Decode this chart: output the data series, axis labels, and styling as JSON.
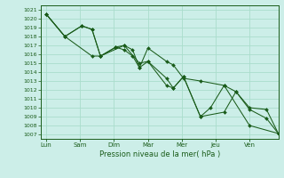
{
  "xlabel": "Pression niveau de la mer( hPa )",
  "bg_color": "#cceee8",
  "grid_color": "#aaddcc",
  "line_color": "#1a5c1a",
  "marker_color": "#1a5c1a",
  "ylim": [
    1006.5,
    1021.5
  ],
  "yticks": [
    1007,
    1008,
    1009,
    1010,
    1011,
    1012,
    1013,
    1014,
    1015,
    1016,
    1017,
    1018,
    1019,
    1020,
    1021
  ],
  "xtick_labels": [
    "Lun",
    "Sam",
    "Dim",
    "Mar",
    "Mer",
    "Jeu",
    "Ven"
  ],
  "xtick_positions": [
    0,
    1,
    2,
    3,
    4,
    5,
    6
  ],
  "xlim": [
    -0.15,
    6.85
  ],
  "series1_x": [
    0.0,
    0.55,
    1.05,
    1.35,
    1.6,
    2.05,
    2.3,
    2.55,
    2.75,
    3.0,
    3.55,
    3.75,
    4.05,
    4.55,
    5.25,
    6.0,
    6.85
  ],
  "series1_y": [
    1020.5,
    1018.0,
    1019.2,
    1018.8,
    1015.8,
    1016.8,
    1016.5,
    1015.8,
    1014.5,
    1016.7,
    1015.2,
    1014.8,
    1013.3,
    1013.0,
    1012.5,
    1008.0,
    1007.1
  ],
  "series2_x": [
    0.0,
    0.55,
    1.35,
    1.6,
    2.3,
    2.75,
    3.0,
    3.55,
    3.75,
    4.05,
    4.55,
    5.25,
    5.6,
    6.0,
    6.5,
    6.85
  ],
  "series2_y": [
    1020.5,
    1018.0,
    1015.8,
    1015.8,
    1017.0,
    1015.0,
    1015.2,
    1013.3,
    1012.2,
    1013.5,
    1009.0,
    1009.5,
    1011.8,
    1010.0,
    1009.8,
    1007.1
  ],
  "series3_x": [
    0.0,
    0.55,
    1.05,
    1.35,
    1.6,
    2.05,
    2.3,
    2.55,
    2.75,
    3.0,
    3.55,
    3.75,
    4.05,
    4.55,
    4.85,
    5.25,
    5.6,
    6.0,
    6.5,
    6.85
  ],
  "series3_y": [
    1020.5,
    1018.0,
    1019.2,
    1018.8,
    1015.8,
    1016.8,
    1017.0,
    1016.5,
    1014.5,
    1015.2,
    1012.5,
    1012.2,
    1013.5,
    1009.0,
    1010.0,
    1012.5,
    1011.8,
    1009.8,
    1008.8,
    1007.1
  ]
}
